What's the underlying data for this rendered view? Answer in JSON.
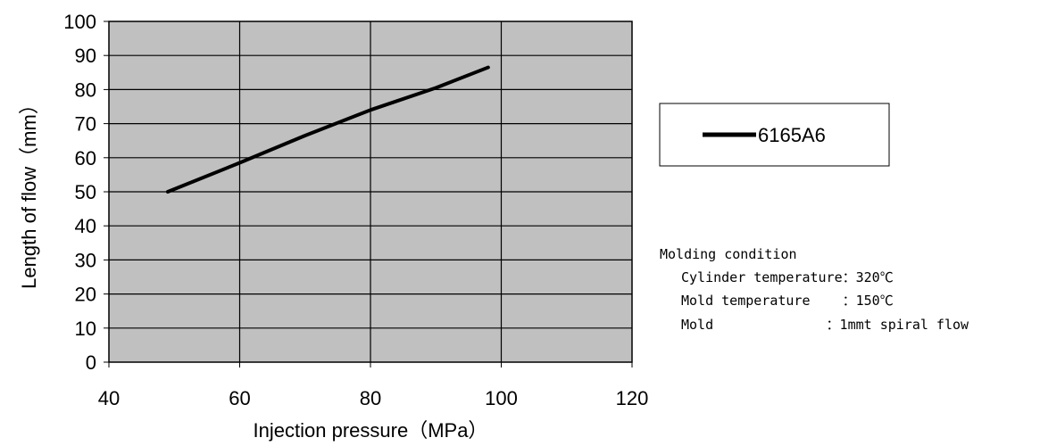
{
  "chart_data": {
    "type": "line",
    "xlabel": "Injection pressure（MPa）",
    "ylabel": "Length of flow（mm）",
    "xlim": [
      40,
      120
    ],
    "ylim": [
      0,
      100
    ],
    "x_ticks": [
      40,
      60,
      80,
      100,
      120
    ],
    "y_ticks": [
      0,
      10,
      20,
      30,
      40,
      50,
      60,
      70,
      80,
      90,
      100
    ],
    "grid": true,
    "plot_background": "#c0c0c0",
    "legend_position": "right",
    "series": [
      {
        "name": "6165A6",
        "color": "#000000",
        "x": [
          49,
          60,
          70,
          80,
          90,
          98
        ],
        "y": [
          50,
          58.5,
          66.5,
          74,
          80.5,
          86.5
        ]
      }
    ]
  },
  "conditions": {
    "heading": "Molding condition",
    "lines": [
      "Cylinder temperature：320℃",
      "Mold temperature    ：150℃",
      "Mold              ：1mmt spiral flow"
    ]
  }
}
